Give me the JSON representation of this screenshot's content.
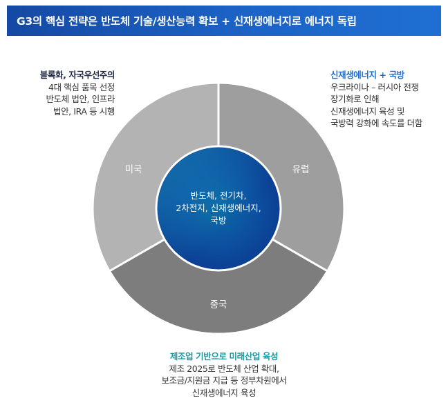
{
  "title": "G3의 핵심 전략은 반도체 기술/생산능력 확보 + 신재생에너지로 에너지 독립",
  "center": {
    "lines": [
      "반도체, 전기차,",
      "2차전지, 신재생에너지,",
      "국방"
    ]
  },
  "segments": {
    "us": {
      "label": "미국",
      "color": "#b3b3b3"
    },
    "eu": {
      "label": "유럽",
      "color": "#9e9e9e"
    },
    "cn": {
      "label": "중국",
      "color": "#7d7d7d"
    }
  },
  "notes": {
    "us": {
      "head": "블록화, 자국우선주의",
      "lines": [
        "4대 핵심 품목 선정",
        "반도체 법안, 인프라",
        "법안, IRA 등 시행"
      ]
    },
    "eu": {
      "head": "신재생에너지 + 국방",
      "lines": [
        "우크라이나 – 러시아 전쟁",
        "장기화로 인해",
        "신재생에너지 육성 및",
        "국방력 강화에 속도를 더함"
      ]
    },
    "cn": {
      "head": "제조업 기반으로 미래산업 육성",
      "lines": [
        "제조 2025로 반도체 산업 확대,",
        "보조금/지원금 지급 등 정부차원에서",
        "신재생에너지 육성"
      ]
    }
  }
}
